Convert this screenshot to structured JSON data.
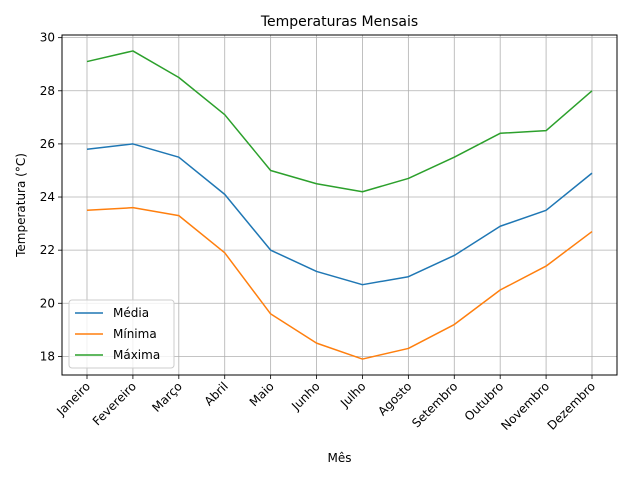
{
  "chart_data": {
    "type": "line",
    "title": "Temperaturas Mensais",
    "xlabel": "Mês",
    "ylabel": "Temperatura (°C)",
    "categories": [
      "Janeiro",
      "Fevereiro",
      "Março",
      "Abril",
      "Maio",
      "Junho",
      "Julho",
      "Agosto",
      "Setembro",
      "Outubro",
      "Novembro",
      "Dezembro"
    ],
    "ylim": [
      17.3,
      30.1
    ],
    "yticks": [
      18,
      20,
      22,
      24,
      26,
      28,
      30
    ],
    "grid": true,
    "legend_position": "lower-left",
    "series": [
      {
        "name": "Média",
        "color": "#1f77b4",
        "values": [
          25.8,
          26.0,
          25.5,
          24.1,
          22.0,
          21.2,
          20.7,
          21.0,
          21.8,
          22.9,
          23.5,
          24.9
        ]
      },
      {
        "name": "Mínima",
        "color": "#ff7f0e",
        "values": [
          23.5,
          23.6,
          23.3,
          21.9,
          19.6,
          18.5,
          17.9,
          18.3,
          19.2,
          20.5,
          21.4,
          22.7
        ]
      },
      {
        "name": "Máxima",
        "color": "#2ca02c",
        "values": [
          29.1,
          29.5,
          28.5,
          27.1,
          25.0,
          24.5,
          24.2,
          24.7,
          25.5,
          26.4,
          26.5,
          28.0
        ]
      }
    ]
  }
}
